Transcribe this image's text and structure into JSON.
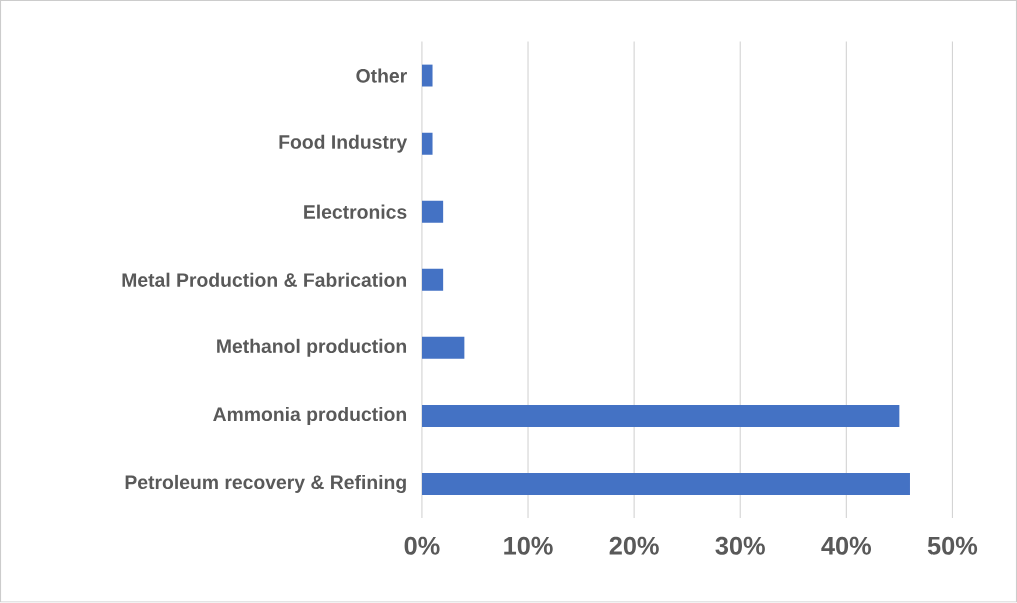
{
  "chart_data": {
    "type": "bar",
    "orientation": "horizontal",
    "categories": [
      "Other",
      "Food Industry",
      "Electronics",
      "Metal Production & Fabrication",
      "Methanol production",
      "Ammonia production",
      "Petroleum recovery & Refining"
    ],
    "values": [
      1,
      1,
      2,
      2,
      4,
      45,
      46
    ],
    "color": "#4472c4",
    "xlim": [
      0,
      50
    ],
    "xticks": [
      {
        "value": 0,
        "label": "0%"
      },
      {
        "value": 10,
        "label": "10%"
      },
      {
        "value": 20,
        "label": "20%"
      },
      {
        "value": 30,
        "label": "30%"
      },
      {
        "value": 40,
        "label": "40%"
      },
      {
        "value": 50,
        "label": "50%"
      }
    ],
    "grid": "x"
  }
}
